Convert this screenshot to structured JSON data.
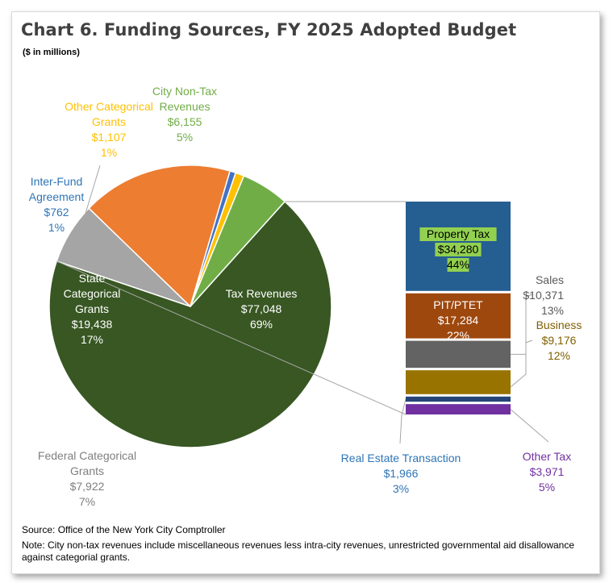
{
  "title": "Chart 6.  Funding Sources, FY 2025 Adopted Budget",
  "subtitle": "($ in millions)",
  "source": "Source: Office of the New York City Comptroller",
  "note": "Note: City non-tax revenues include miscellaneous revenues less intra-city revenues, unrestricted governmental aid disallowance against categorial grants.",
  "chart_data": [
    {
      "type": "pie",
      "title": "",
      "start_angle_deg": -48,
      "slices": [
        {
          "label": "Tax Revenues",
          "value": 77048,
          "value_label": "$77,048",
          "percent": "69%",
          "color": "#385723"
        },
        {
          "label": "Federal Categorical Grants",
          "value": 7922,
          "value_label": "$7,922",
          "percent": "7%",
          "color": "#a5a5a5"
        },
        {
          "label": "State Categorical Grants",
          "value": 19438,
          "value_label": "$19,438",
          "percent": "17%",
          "color": "#ed7d31"
        },
        {
          "label": "Inter-Fund Agreement",
          "value": 762,
          "value_label": "$762",
          "percent": "1%",
          "color": "#4472c4"
        },
        {
          "label": "Other Categorical Grants",
          "value": 1107,
          "value_label": "$1,107",
          "percent": "1%",
          "color": "#ffc000"
        },
        {
          "label": "City Non-Tax Revenues",
          "value": 6155,
          "value_label": "$6,155",
          "percent": "5%",
          "color": "#70ad47"
        }
      ],
      "label_colors": {
        "Tax Revenues": "#ffffff",
        "Federal Categorical Grants": "#7f7f7f",
        "State Categorical Grants": "#ffffff",
        "Inter-Fund Agreement": "#2e75b6",
        "Other Categorical Grants": "#ffc000",
        "City Non-Tax Revenues": "#70ad47"
      }
    },
    {
      "type": "bar",
      "stacked": true,
      "title": "",
      "parent": "Tax Revenues",
      "segments": [
        {
          "label": "Property Tax",
          "value": 34280,
          "value_label": "$34,280",
          "percent": "44%",
          "color": "#255e91",
          "label_color": "#000000",
          "highlight": "#92d050"
        },
        {
          "label": "PIT/PTET",
          "value": 17284,
          "value_label": "$17,284",
          "percent": "22%",
          "color": "#9e480e",
          "label_color": "#ffffff"
        },
        {
          "label": "Sales",
          "value": 10371,
          "value_label": "$10,371",
          "percent": "13%",
          "color": "#636363",
          "label_color": "#595959"
        },
        {
          "label": "Business",
          "value": 9176,
          "value_label": "$9,176",
          "percent": "12%",
          "color": "#997300",
          "label_color": "#806000"
        },
        {
          "label": "Real Estate Transaction",
          "value": 1966,
          "value_label": "$1,966",
          "percent": "3%",
          "color": "#264478",
          "label_color": "#2e75b6"
        },
        {
          "label": "Other Tax",
          "value": 3971,
          "value_label": "$3,971",
          "percent": "5%",
          "color": "#7030a0",
          "label_color": "#7030a0"
        }
      ]
    }
  ]
}
